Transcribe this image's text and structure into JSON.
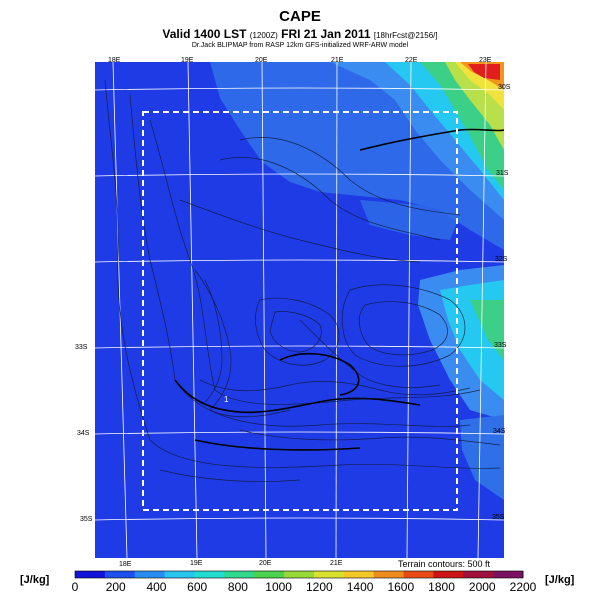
{
  "header": {
    "title": "CAPE",
    "subtitle_main": "Valid 1400 LST",
    "subtitle_small1": "(1200Z)",
    "subtitle_date": "FRI 21 Jan 2011",
    "subtitle_small2": "[18hrFcst@2156/]",
    "credit": "Dr.Jack BLIPMAP from RASP 12km GFS-initialized WRF-ARW model"
  },
  "map": {
    "top_longitudes": [
      "18E",
      "19E",
      "20E",
      "21E",
      "22E",
      "23E"
    ],
    "bottom_longitudes": [
      "18E",
      "19E",
      "20E",
      "21E"
    ],
    "right_latitudes": [
      "30S",
      "31S",
      "32S",
      "33S",
      "34S",
      "35S"
    ],
    "left_latitudes": [
      "33S",
      "34S",
      "35S"
    ],
    "marker": "1",
    "colors": {
      "background": "#1f3be6",
      "light_blue": "#3a8cf0",
      "cyan": "#25c8f0",
      "green": "#3ccf88",
      "yellow_green": "#b8e04a",
      "yellow": "#f2e23c",
      "orange": "#f0961e",
      "red": "#e01e1e"
    }
  },
  "terrain_note": "Terrain contours: 500 ft",
  "colorbar": {
    "unit": "[J/kg]",
    "labels": [
      "0",
      "200",
      "400",
      "600",
      "800",
      "1000",
      "1200",
      "1400",
      "1600",
      "1800",
      "2000",
      "2200"
    ],
    "colors": [
      "#1414d8",
      "#1e50ee",
      "#2a8cf2",
      "#28c4f0",
      "#22dcd0",
      "#30d890",
      "#4cd24c",
      "#98d838",
      "#d8e030",
      "#f2c828",
      "#f08c1e",
      "#e84a18",
      "#cc1414",
      "#a0103c",
      "#7a1260"
    ]
  }
}
